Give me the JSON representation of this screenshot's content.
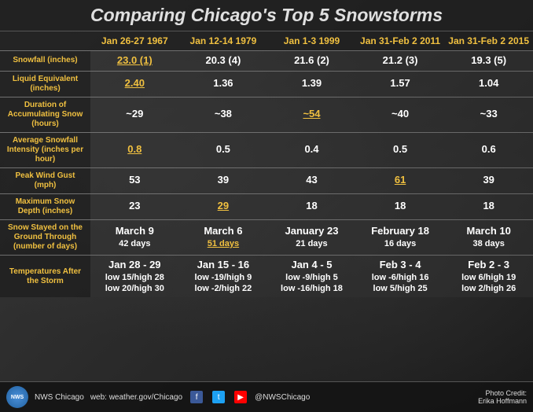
{
  "title": "Comparing Chicago's Top 5 Snowstorms",
  "columns": [
    {
      "label": "Jan 26-27 1967"
    },
    {
      "label": "Jan 12-14 1979"
    },
    {
      "label": "Jan 1-3 1999"
    },
    {
      "label": "Jan 31-Feb 2 2011"
    },
    {
      "label": "Jan 31-Feb 2 2015"
    }
  ],
  "rows": [
    {
      "label": "Snowfall (inches)",
      "cells": [
        {
          "v": "23.0 (1)",
          "hl": true
        },
        {
          "v": "20.3 (4)"
        },
        {
          "v": "21.6 (2)"
        },
        {
          "v": "21.2 (3)"
        },
        {
          "v": "19.3 (5)"
        }
      ]
    },
    {
      "label": "Liquid Equivalent (inches)",
      "cells": [
        {
          "v": "2.40",
          "hl": true
        },
        {
          "v": "1.36"
        },
        {
          "v": "1.39"
        },
        {
          "v": "1.57"
        },
        {
          "v": "1.04"
        }
      ]
    },
    {
      "label": "Duration of Accumulating Snow (hours)",
      "cells": [
        {
          "v": "~29"
        },
        {
          "v": "~38"
        },
        {
          "v": "~54",
          "hl": true
        },
        {
          "v": "~40"
        },
        {
          "v": "~33"
        }
      ]
    },
    {
      "label": "Average Snowfall Intensity (inches per hour)",
      "cells": [
        {
          "v": "0.8",
          "hl": true
        },
        {
          "v": "0.5"
        },
        {
          "v": "0.4"
        },
        {
          "v": "0.5"
        },
        {
          "v": "0.6"
        }
      ]
    },
    {
      "label": "Peak Wind Gust (mph)",
      "cells": [
        {
          "v": "53"
        },
        {
          "v": "39"
        },
        {
          "v": "43"
        },
        {
          "v": "61",
          "hl": true
        },
        {
          "v": "39"
        }
      ]
    },
    {
      "label": "Maximum Snow Depth (inches)",
      "cells": [
        {
          "v": "23"
        },
        {
          "v": "29",
          "hl": true
        },
        {
          "v": "18"
        },
        {
          "v": "18"
        },
        {
          "v": "18"
        }
      ]
    },
    {
      "label": "Snow Stayed on the Ground Through (number of days)",
      "cells": [
        {
          "v": "March 9",
          "v2": "42 days"
        },
        {
          "v": "March 6",
          "v2": "51 days",
          "hl2": true
        },
        {
          "v": "January 23",
          "v2": "21 days"
        },
        {
          "v": "February 18",
          "v2": "16 days"
        },
        {
          "v": "March 10",
          "v2": "38 days"
        }
      ]
    },
    {
      "label": "Temperatures After the Storm",
      "cells": [
        {
          "v": "Jan 28 - 29",
          "v2": "low 15/high 28",
          "v3": "low 20/high 30"
        },
        {
          "v": "Jan 15 - 16",
          "v2": "low -19/high 9",
          "v3": "low -2/high 22"
        },
        {
          "v": "Jan 4 - 5",
          "v2": "low -9/high 5",
          "v3": "low -16/high 18"
        },
        {
          "v": "Feb 3 - 4",
          "v2": "low -6/high 16",
          "v3": "low 5/high 25"
        },
        {
          "v": "Feb 2 - 3",
          "v2": "low 6/high 19",
          "v3": "low 2/high 26"
        }
      ]
    }
  ],
  "footer": {
    "org": "NWS Chicago",
    "web": "web: weather.gov/Chicago",
    "handle": "@NWSChicago",
    "credit_label": "Photo Credit:",
    "credit_name": "Erika Hoffmann"
  },
  "colors": {
    "highlight": "#f0c040",
    "text": "#ffffff",
    "bg_dark": "#1a1a1a"
  }
}
